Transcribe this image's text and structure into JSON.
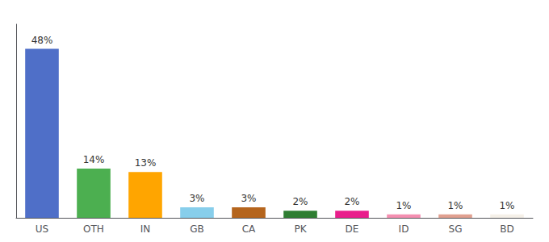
{
  "chart_data": {
    "type": "bar",
    "categories": [
      "US",
      "OTH",
      "IN",
      "GB",
      "CA",
      "PK",
      "DE",
      "ID",
      "SG",
      "BD"
    ],
    "values": [
      48,
      14,
      13,
      3,
      3,
      2,
      2,
      1,
      1,
      1
    ],
    "value_labels": [
      "48%",
      "14%",
      "13%",
      "3%",
      "3%",
      "2%",
      "2%",
      "1%",
      "1%",
      "1%"
    ],
    "colors": [
      "#4f6fc8",
      "#4caf50",
      "#ffa500",
      "#87ceeb",
      "#b5651d",
      "#2e7d32",
      "#e91e8c",
      "#f48fb1",
      "#e0a090",
      "#f5f0e8"
    ],
    "ylim": [
      0,
      55
    ],
    "data_labels": true,
    "tick_labels": "x",
    "grid": false
  }
}
